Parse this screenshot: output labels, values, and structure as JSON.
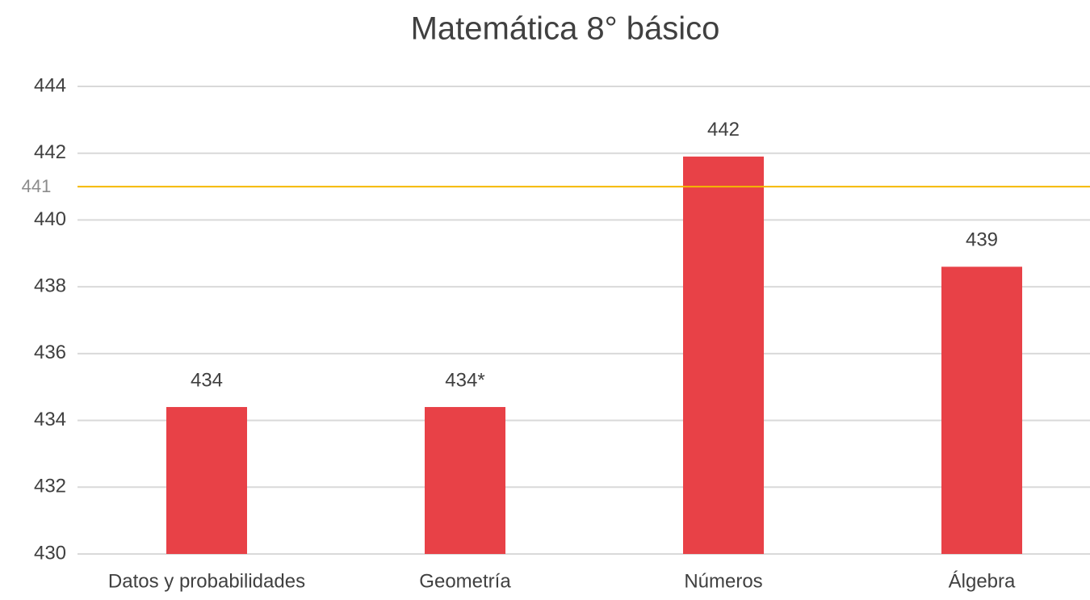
{
  "chart_data": {
    "type": "bar",
    "title": "Matemática 8° básico",
    "categories": [
      "Datos y probabilidades",
      "Geometría",
      "Números",
      "Álgebra"
    ],
    "values": [
      434.4,
      434.4,
      441.9,
      438.6
    ],
    "value_labels": [
      "434",
      "434*",
      "442",
      "439"
    ],
    "color": "#e84147",
    "ylim": [
      430,
      444
    ],
    "yticks": [
      430,
      432,
      434,
      436,
      438,
      440,
      442,
      444
    ],
    "grid": true,
    "reference_line": 441,
    "reference_color": "#f5b800"
  }
}
